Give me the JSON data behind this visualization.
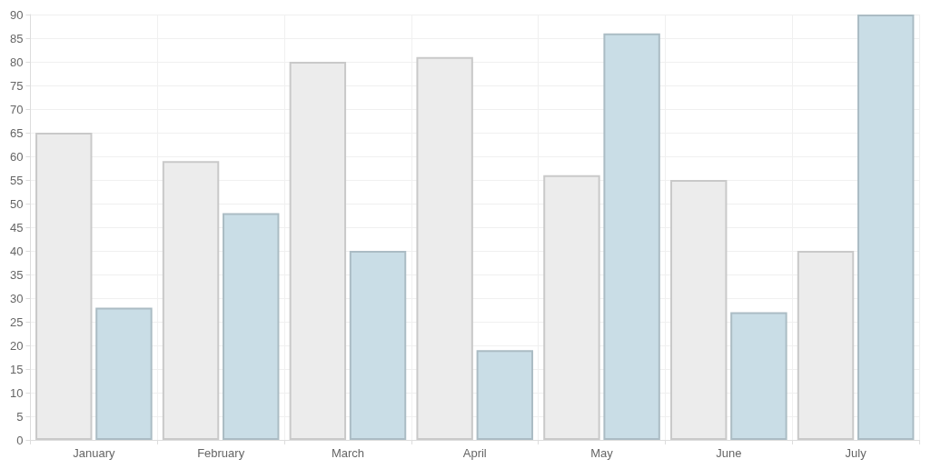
{
  "chart_data": {
    "type": "bar",
    "categories": [
      "January",
      "February",
      "March",
      "April",
      "May",
      "June",
      "July"
    ],
    "series": [
      {
        "color": "#ececec",
        "values": [
          65,
          59,
          80,
          81,
          56,
          55,
          40
        ]
      },
      {
        "color": "#c9dde6",
        "values": [
          28,
          48,
          40,
          19,
          86,
          27,
          90
        ]
      }
    ],
    "ylim": [
      0,
      90
    ],
    "yticks": [
      0,
      5,
      10,
      15,
      20,
      25,
      30,
      35,
      40,
      45,
      50,
      55,
      60,
      65,
      70,
      75,
      80,
      85,
      90
    ],
    "grid": true
  }
}
